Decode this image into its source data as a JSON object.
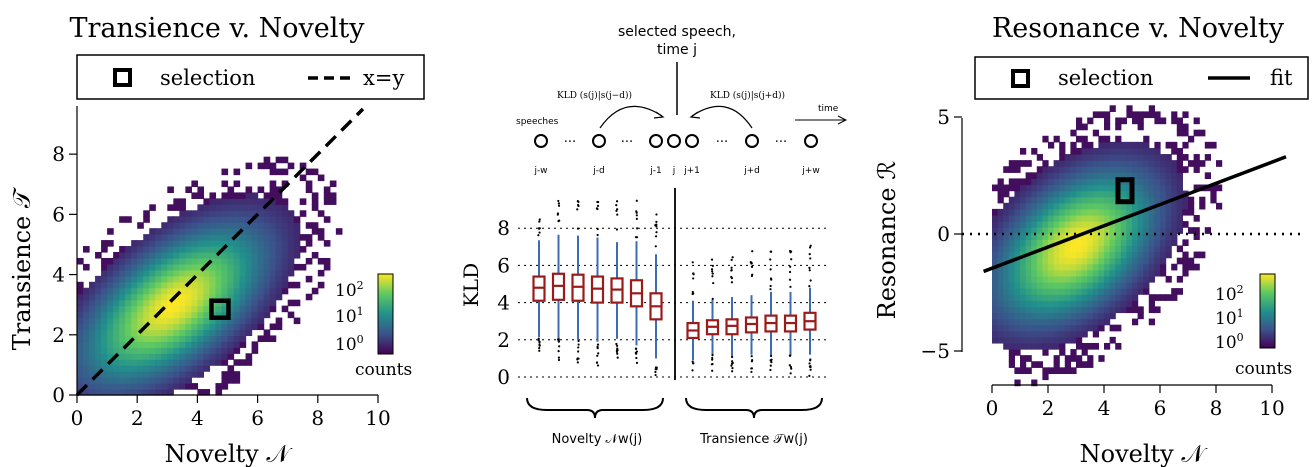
{
  "chart_data": [
    {
      "type": "heatmap",
      "title": "Transience v. Novelty",
      "xlabel": "Novelty 𝒩",
      "ylabel": "Transience 𝒯",
      "xlim": [
        0,
        10
      ],
      "ylim": [
        0,
        9.5
      ],
      "xticks": [
        0,
        2,
        4,
        6,
        8,
        10
      ],
      "yticks": [
        0,
        2,
        4,
        6,
        8
      ],
      "legend": {
        "placement": "top",
        "entries": [
          {
            "label": "selection"
          },
          {
            "label": "x=y"
          }
        ]
      },
      "colorbar": {
        "label": "counts",
        "ticks": [
          "10",
          "10",
          "10"
        ],
        "exponents": [
          "2",
          "1",
          "0"
        ],
        "scale": "log"
      },
      "density": {
        "center": [
          3.2,
          3.0
        ],
        "spread": [
          1.5,
          1.3
        ],
        "correlation": 0.6
      },
      "identity_line": {
        "x": [
          0,
          9.5
        ],
        "y": [
          0,
          9.5
        ]
      },
      "selection": {
        "x": 4.75,
        "y": 2.85
      }
    },
    {
      "type": "box",
      "title": "",
      "ylabel": "KLD",
      "ylim": [
        0,
        9.5
      ],
      "yticks": [
        0,
        2,
        4,
        6,
        8
      ],
      "novelty": {
        "medians": [
          4.8,
          4.9,
          4.85,
          4.75,
          4.7,
          4.5,
          3.8
        ],
        "q1": [
          4.1,
          4.15,
          4.1,
          4.0,
          4.0,
          3.8,
          3.1
        ],
        "q3": [
          5.4,
          5.55,
          5.5,
          5.4,
          5.3,
          5.2,
          4.5
        ]
      },
      "transience": {
        "medians": [
          2.5,
          2.7,
          2.75,
          2.85,
          2.9,
          2.9,
          3.0
        ],
        "q1": [
          2.1,
          2.3,
          2.3,
          2.4,
          2.45,
          2.45,
          2.55
        ],
        "q3": [
          2.9,
          3.05,
          3.1,
          3.2,
          3.3,
          3.3,
          3.45
        ]
      },
      "diagram": {
        "selected_label_line1": "selected speech,",
        "selected_label_line2": "time j",
        "speeches_label": "speeches",
        "time_label": "time",
        "kld_left": "KLD (s(j)|s(j−d))",
        "kld_right": "KLD (s(j)|s(j+d))",
        "nodes": [
          "j-w",
          "j-d",
          "j-1",
          "j",
          "j+1",
          "j+d",
          "j+w"
        ],
        "dots": "···"
      },
      "brace_left": "Novelty 𝒩w(j)",
      "brace_right": "Transience 𝒯w(j)"
    },
    {
      "type": "heatmap",
      "title": "Resonance v. Novelty",
      "xlabel": "Novelty 𝒩",
      "ylabel": "Resonance ℛ",
      "xlim": [
        0,
        10
      ],
      "ylim": [
        -7,
        5.5
      ],
      "xticks": [
        0,
        2,
        4,
        6,
        8,
        10
      ],
      "yticks": [
        -5,
        0,
        5
      ],
      "ytick_labels": [
        "−5",
        "0",
        "5"
      ],
      "legend": {
        "placement": "top",
        "entries": [
          {
            "label": "selection"
          },
          {
            "label": "fit"
          }
        ]
      },
      "colorbar": {
        "label": "counts",
        "ticks": [
          "10",
          "10",
          "10"
        ],
        "exponents": [
          "2",
          "1",
          "0"
        ],
        "scale": "log"
      },
      "density": {
        "center": [
          3.0,
          -0.5
        ],
        "spread": [
          1.4,
          1.6
        ],
        "correlation": 0.45
      },
      "fit_line": {
        "x": [
          -0.3,
          10.5
        ],
        "y": [
          -1.6,
          3.3
        ]
      },
      "selection": {
        "x": 4.75,
        "y": 1.85
      }
    }
  ]
}
